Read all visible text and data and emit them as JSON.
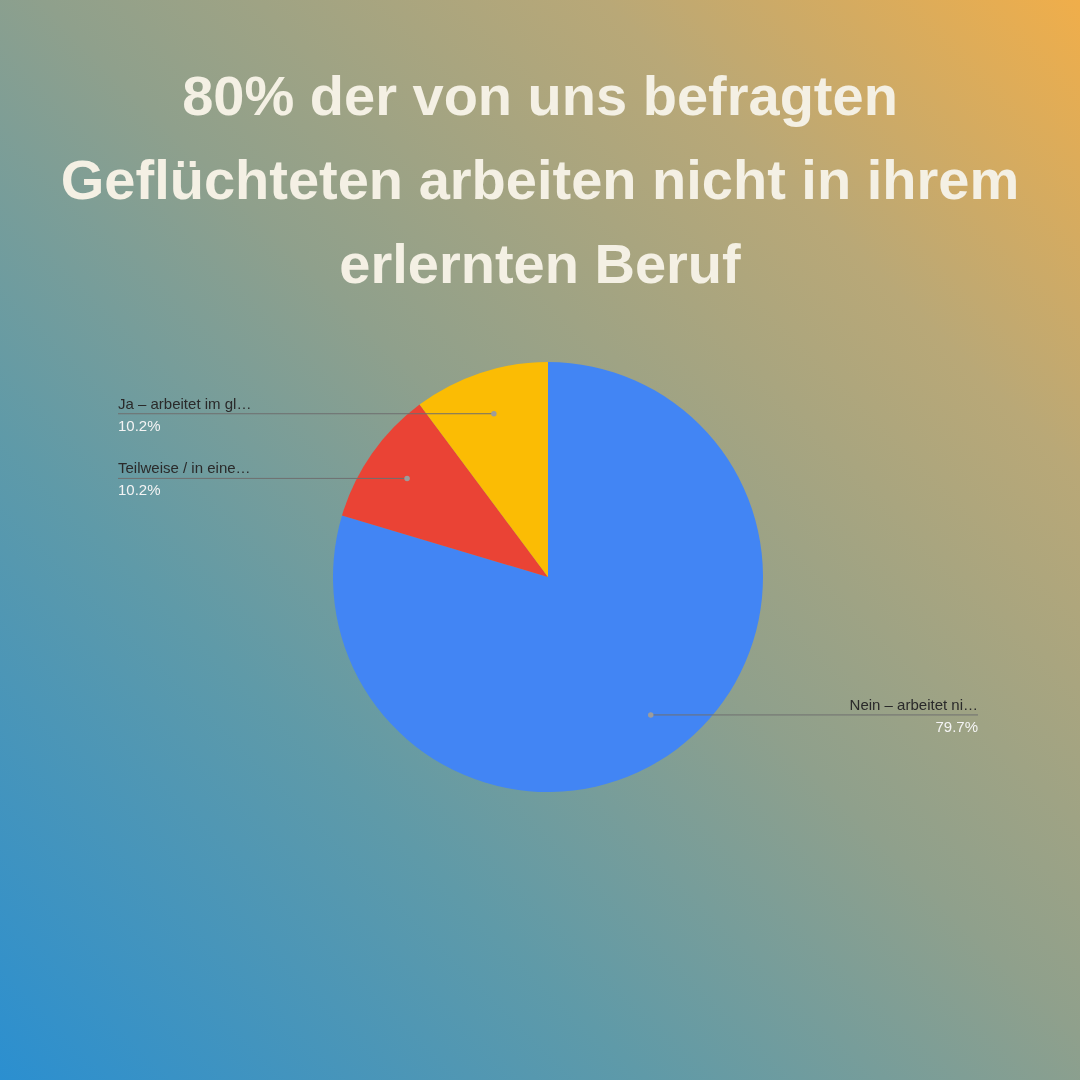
{
  "chart_data": {
    "type": "pie",
    "title": "80% der von uns befragten Geflüchteten arbeiten nicht in ihrem erlernten Beruf",
    "categories": [
      "Nein – arbeitet ni…",
      "Teilweise / in eine…",
      "Ja – arbeitet im gl…"
    ],
    "values": [
      79.7,
      10.2,
      10.2
    ],
    "value_labels": [
      "79.7%",
      "10.2%",
      "10.2%"
    ],
    "colors": [
      "#4285f4",
      "#ea4335",
      "#fbbc04"
    ]
  }
}
